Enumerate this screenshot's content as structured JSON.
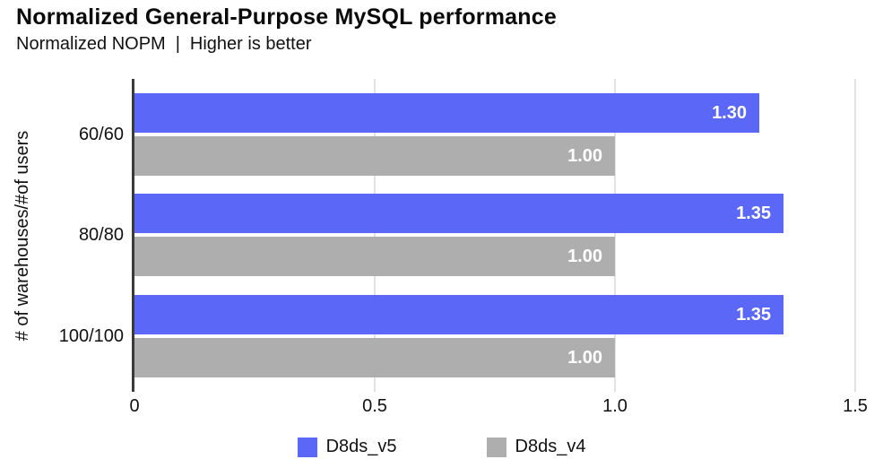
{
  "header": {
    "title": "Normalized General-Purpose MySQL performance",
    "subtitle_metric": "Normalized NOPM",
    "subtitle_separator": "|",
    "subtitle_note": "Higher is better"
  },
  "chart_data": {
    "type": "bar",
    "orientation": "horizontal",
    "title": "Normalized General-Purpose MySQL performance",
    "subtitle": "Normalized NOPM | Higher is better",
    "ylabel": "# of warehouses/#of users",
    "xlabel": "",
    "categories": [
      "60/60",
      "80/80",
      "100/100"
    ],
    "series": [
      {
        "name": "D8ds_v5",
        "color": "#5a67f7",
        "values": [
          1.3,
          1.35,
          1.35
        ],
        "labels": [
          "1.30",
          "1.35",
          "1.35"
        ]
      },
      {
        "name": "D8ds_v4",
        "color": "#aeaeae",
        "values": [
          1.0,
          1.0,
          1.0
        ],
        "labels": [
          "1.00",
          "1.00",
          "1.00"
        ]
      }
    ],
    "xlim": [
      0,
      1.5
    ],
    "xticks": [
      {
        "value": 0,
        "label": "0"
      },
      {
        "value": 0.5,
        "label": "0.5"
      },
      {
        "value": 1.0,
        "label": "1.0"
      },
      {
        "value": 1.5,
        "label": "1.5"
      }
    ],
    "grid": "vertical",
    "legend_position": "bottom",
    "value_labels": "inside-end",
    "colors": {
      "axis": "#3a3a3a",
      "gridline": "#e3e3e3",
      "text": "#111111",
      "value_label": "#ffffff"
    }
  }
}
